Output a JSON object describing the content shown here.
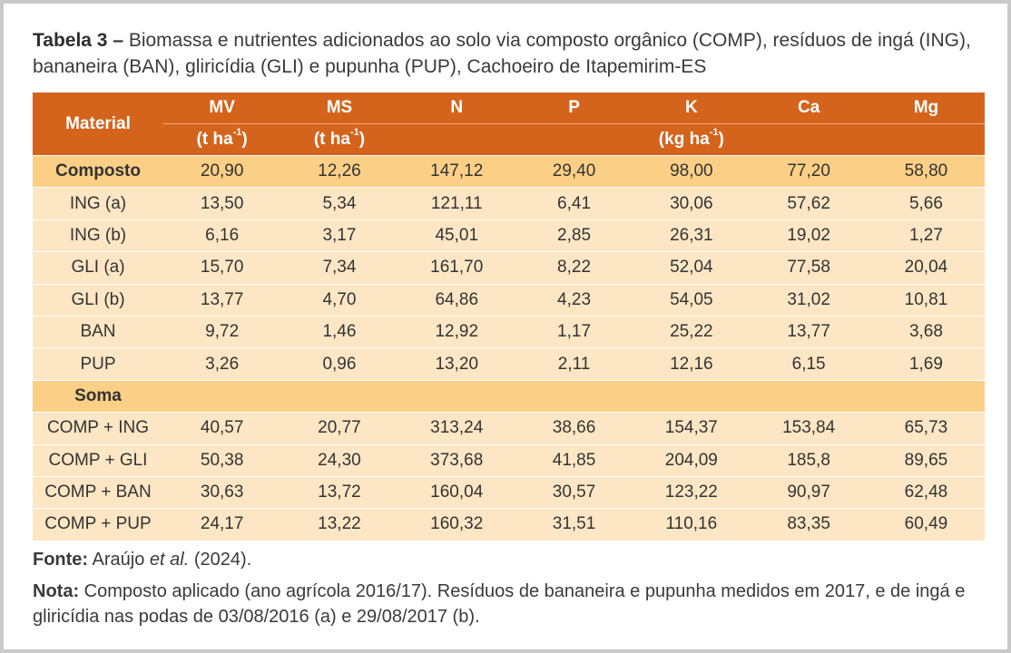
{
  "caption": {
    "lead": "Tabela 3 –",
    "text": " Biomassa e nutrientes adicionados ao solo via composto orgânico (COMP), resíduos de ingá (ING), bananeira (BAN), gliricídia (GLI) e pupunha (PUP), Cachoeiro de Itapemirim-ES"
  },
  "table": {
    "material_header": "Material",
    "columns": [
      "MV",
      "MS",
      "N",
      "P",
      "K",
      "Ca",
      "Mg"
    ],
    "units": {
      "mv": "(t ha",
      "ms": "(t ha",
      "nutrients": "(kg ha",
      "exp": "-1",
      "close": ")"
    },
    "rows": [
      [
        "Composto",
        "20,90",
        "12,26",
        "147,12",
        "29,40",
        "98,00",
        "77,20",
        "58,80"
      ],
      [
        "ING (a)",
        "13,50",
        "5,34",
        "121,11",
        "6,41",
        "30,06",
        "57,62",
        "5,66"
      ],
      [
        "ING (b)",
        "6,16",
        "3,17",
        "45,01",
        "2,85",
        "26,31",
        "19,02",
        "1,27"
      ],
      [
        "GLI (a)",
        "15,70",
        "7,34",
        "161,70",
        "8,22",
        "52,04",
        "77,58",
        "20,04"
      ],
      [
        "GLI (b)",
        "13,77",
        "4,70",
        "64,86",
        "4,23",
        "54,05",
        "31,02",
        "10,81"
      ],
      [
        "BAN",
        "9,72",
        "1,46",
        "12,92",
        "1,17",
        "25,22",
        "13,77",
        "3,68"
      ],
      [
        "PUP",
        "3,26",
        "0,96",
        "13,20",
        "2,11",
        "12,16",
        "6,15",
        "1,69"
      ],
      [
        "Soma",
        "",
        "",
        "",
        "",
        "",
        "",
        ""
      ],
      [
        "COMP + ING",
        "40,57",
        "20,77",
        "313,24",
        "38,66",
        "154,37",
        "153,84",
        "65,73"
      ],
      [
        "COMP + GLI",
        "50,38",
        "24,30",
        "373,68",
        "41,85",
        "204,09",
        "185,8",
        "89,65"
      ],
      [
        "COMP + BAN",
        "30,63",
        "13,72",
        "160,04",
        "30,57",
        "123,22",
        "90,97",
        "62,48"
      ],
      [
        "COMP + PUP",
        "24,17",
        "13,22",
        "160,32",
        "31,51",
        "110,16",
        "83,35",
        "60,49"
      ]
    ],
    "section_rows": [
      0,
      7
    ]
  },
  "notes": {
    "source_label": "Fonte:",
    "source_author": " Araújo ",
    "source_etal": "et al.",
    "source_year": " (2024).",
    "note_label": "Nota:",
    "note_text": " Composto aplicado (ano agrícola 2016/17). Resíduos de bananeira e pupunha medidos em 2017, e de ingá e gliricídia nas podas de 03/08/2016 (a) e 29/08/2017 (b)."
  }
}
